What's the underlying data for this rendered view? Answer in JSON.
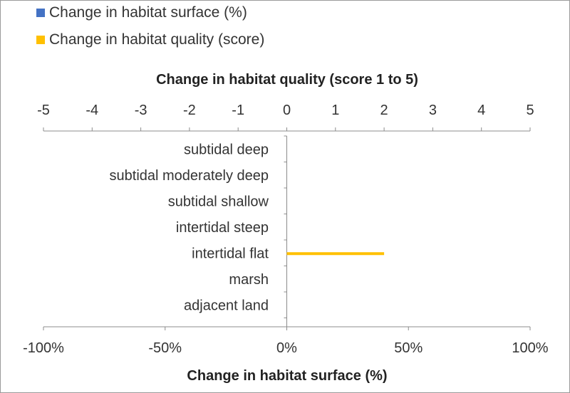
{
  "chart_data": {
    "type": "bar",
    "orientation": "horizontal",
    "categories": [
      "subtidal deep",
      "subtidal moderately deep",
      "subtidal shallow",
      "intertidal steep",
      "intertidal flat",
      "marsh",
      "adjacent land"
    ],
    "series": [
      {
        "name": "Change in habitat surface (%)",
        "axis": "bottom",
        "color": "#4472C4",
        "values": [
          0,
          0,
          0,
          0,
          0,
          0,
          0
        ]
      },
      {
        "name": "Change in habitat quality (score)",
        "axis": "top",
        "color": "#FFC000",
        "values": [
          0,
          0,
          0,
          0,
          2,
          0,
          0
        ]
      }
    ],
    "top_axis": {
      "title": "Change in habitat quality (score 1 to 5)",
      "range": [
        -5,
        5
      ],
      "ticks": [
        "-5",
        "-4",
        "-3",
        "-2",
        "-1",
        "0",
        "1",
        "2",
        "3",
        "4",
        "5"
      ]
    },
    "bottom_axis": {
      "title": "Change in habitat surface (%)",
      "range": [
        -100,
        100
      ],
      "ticks": [
        "-100%",
        "-50%",
        "0%",
        "50%",
        "100%"
      ]
    },
    "legend_position": "top-left",
    "grid": false
  }
}
